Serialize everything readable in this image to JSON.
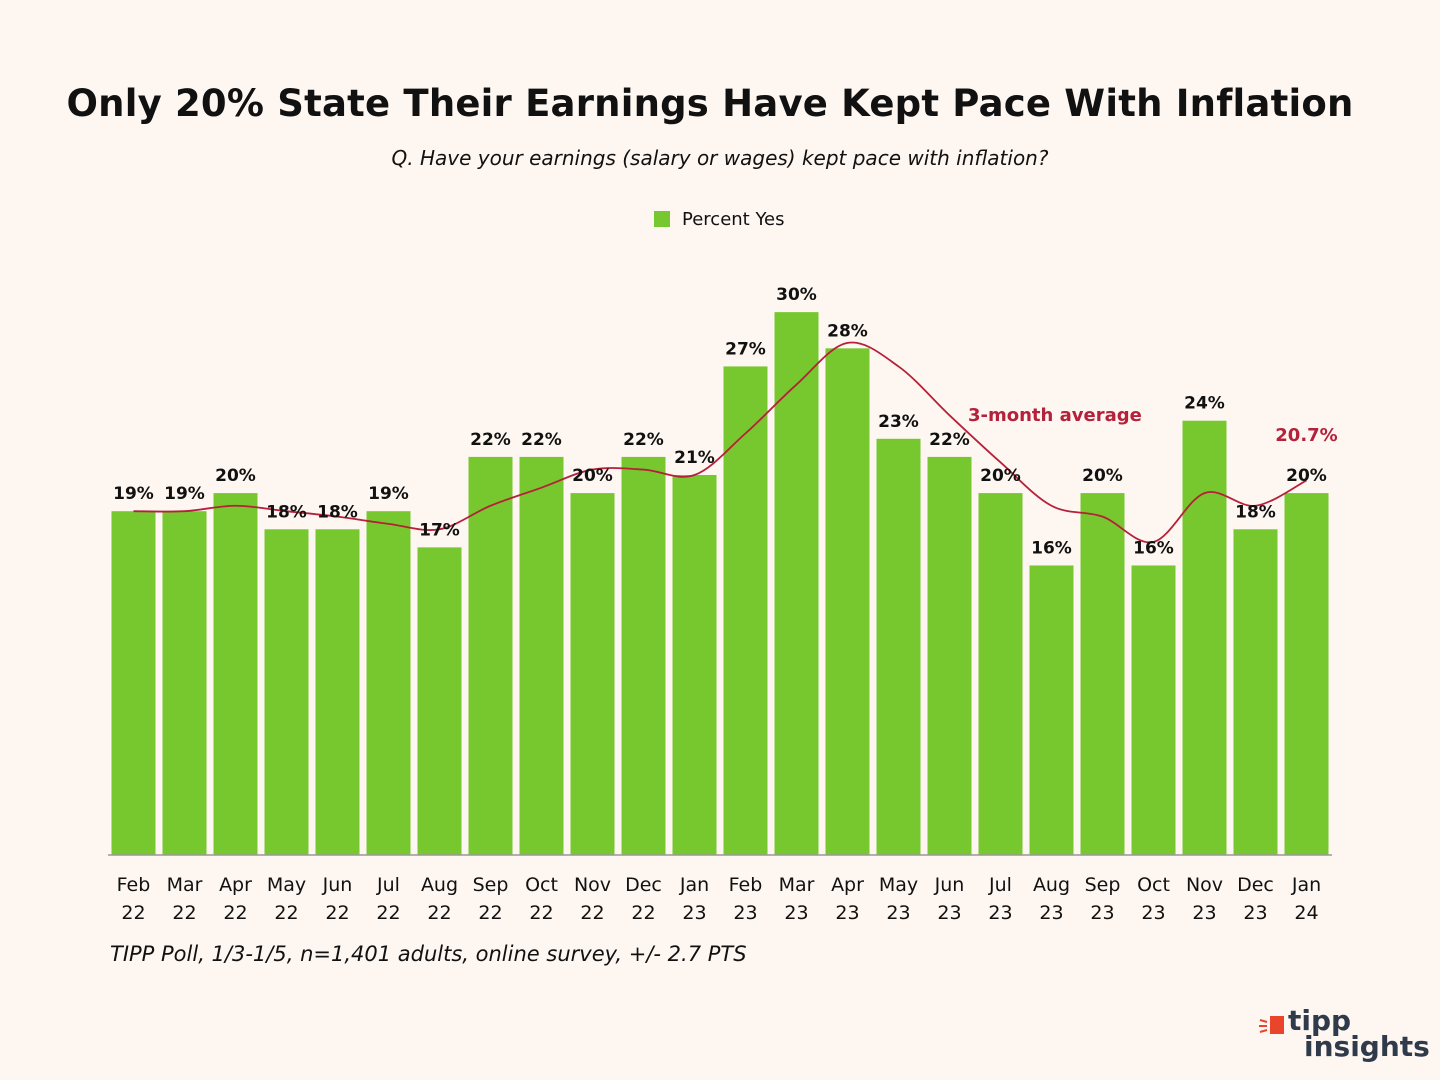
{
  "chart_data": {
    "type": "bar",
    "title": "Only 20% State Their Earnings Have Kept Pace With Inflation",
    "subtitle": "Q. Have your earnings (salary or wages) kept pace with inflation?",
    "categories": [
      [
        "Feb",
        "22"
      ],
      [
        "Mar",
        "22"
      ],
      [
        "Apr",
        "22"
      ],
      [
        "May",
        "22"
      ],
      [
        "Jun",
        "22"
      ],
      [
        "Jul",
        "22"
      ],
      [
        "Aug",
        "22"
      ],
      [
        "Sep",
        "22"
      ],
      [
        "Oct",
        "22"
      ],
      [
        "Nov",
        "22"
      ],
      [
        "Dec",
        "22"
      ],
      [
        "Jan",
        "23"
      ],
      [
        "Feb",
        "23"
      ],
      [
        "Mar",
        "23"
      ],
      [
        "Apr",
        "23"
      ],
      [
        "May",
        "23"
      ],
      [
        "Jun",
        "23"
      ],
      [
        "Jul",
        "23"
      ],
      [
        "Aug",
        "23"
      ],
      [
        "Sep",
        "23"
      ],
      [
        "Oct",
        "23"
      ],
      [
        "Nov",
        "23"
      ],
      [
        "Dec",
        "23"
      ],
      [
        "Jan",
        "24"
      ]
    ],
    "series": [
      {
        "name": "Percent Yes",
        "values": [
          19,
          19,
          20,
          18,
          18,
          19,
          17,
          22,
          22,
          20,
          22,
          21,
          27,
          30,
          28,
          23,
          22,
          20,
          16,
          20,
          16,
          24,
          18,
          20
        ],
        "labels": [
          "19%",
          "19%",
          "20%",
          "18%",
          "18%",
          "19%",
          "17%",
          "22%",
          "22%",
          "20%",
          "22%",
          "21%",
          "27%",
          "30%",
          "28%",
          "23%",
          "22%",
          "20%",
          "16%",
          "20%",
          "16%",
          "24%",
          "18%",
          "20%"
        ],
        "color": "#76c82e"
      },
      {
        "name": "3-month average",
        "type": "line",
        "values": [
          19.0,
          19.0,
          19.3,
          19.0,
          18.7,
          18.3,
          18.0,
          19.3,
          20.3,
          21.3,
          21.3,
          21.0,
          23.3,
          26.0,
          28.3,
          27.0,
          24.3,
          21.7,
          19.3,
          18.7,
          17.3,
          20.0,
          19.3,
          20.7
        ],
        "end_label": "20.7%",
        "color": "#b5203a"
      }
    ],
    "ylim": [
      0,
      31.5
    ],
    "legend": "top-center",
    "grid": false
  },
  "footnote": "TIPP Poll, 1/3-1/5, n=1,401 adults, online survey, +/- 2.7 PTS",
  "brand": {
    "line1": "tipp",
    "line2": "insights",
    "mark_color": "#e8452c"
  }
}
